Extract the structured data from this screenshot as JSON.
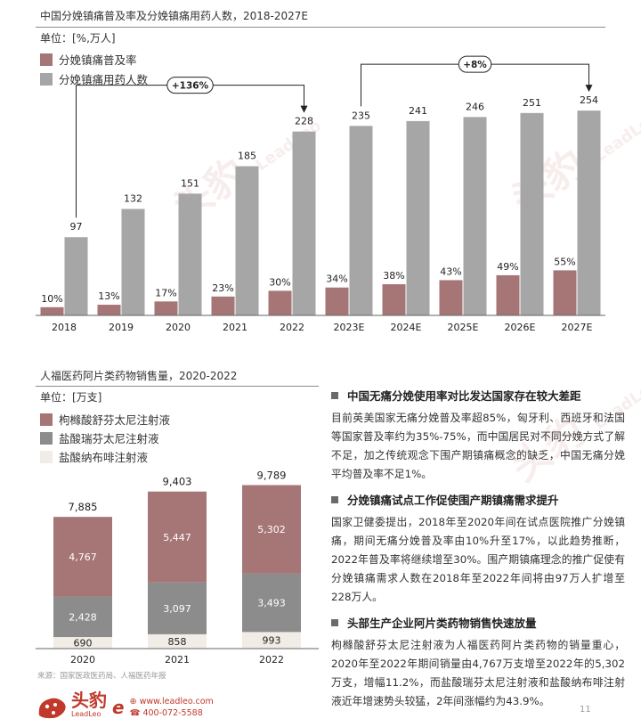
{
  "chart1": {
    "title": "中国分娩镇痛普及率及分娩镇痛用药人数，2018-2027E",
    "unit": "单位：[%,万人]",
    "legend": [
      {
        "label": "分娩镇痛普及率",
        "color": "#a67676"
      },
      {
        "label": "分娩镇痛用药人数",
        "color": "#a6a6a6"
      }
    ],
    "growth_labels": [
      "+136%",
      "+8%"
    ]
  },
  "chart2": {
    "title": "人福医药阿片类药物销售量，2020-2022",
    "unit": "单位：[万支]",
    "legend": [
      {
        "label": "枸橼酸舒芬太尼注射液",
        "color": "#a67676"
      },
      {
        "label": "盐酸瑞芬太尼注射液",
        "color": "#8c8c8c"
      },
      {
        "label": "盐酸纳布啡注射液",
        "color": "#f2ece6"
      }
    ],
    "source": "来源：国家医政医药局、人福医药年报"
  },
  "chart_data": [
    {
      "type": "bar",
      "title": "中国分娩镇痛普及率及分娩镇痛用药人数，2018-2027E",
      "categories": [
        "2018",
        "2019",
        "2020",
        "2021",
        "2022",
        "2023E",
        "2024E",
        "2025E",
        "2026E",
        "2027E"
      ],
      "series": [
        {
          "name": "分娩镇痛普及率",
          "values": [
            10,
            13,
            17,
            23,
            30,
            34,
            38,
            43,
            49,
            55
          ],
          "labels": [
            "10%",
            "13%",
            "17%",
            "23%",
            "30%",
            "34%",
            "38%",
            "43%",
            "49%",
            "55%"
          ],
          "color": "#a67676"
        },
        {
          "name": "分娩镇痛用药人数",
          "values": [
            97,
            132,
            151,
            185,
            228,
            235,
            241,
            246,
            251,
            254
          ],
          "labels": [
            "97",
            "132",
            "151",
            "185",
            "228",
            "235",
            "241",
            "246",
            "251",
            "254"
          ],
          "color": "#a6a6a6"
        }
      ],
      "annotations": [
        {
          "text": "+136%",
          "from": "2018",
          "to": "2022"
        },
        {
          "text": "+8%",
          "from": "2023E",
          "to": "2027E"
        }
      ],
      "legend": "top-left"
    },
    {
      "type": "bar",
      "stacked": true,
      "title": "人福医药阿片类药物销售量，2020-2022",
      "categories": [
        "2020",
        "2021",
        "2022"
      ],
      "series": [
        {
          "name": "盐酸纳布啡注射液",
          "values": [
            690,
            858,
            993
          ],
          "labels": [
            "690",
            "858",
            "993"
          ],
          "color": "#f2ece6"
        },
        {
          "name": "盐酸瑞芬太尼注射液",
          "values": [
            2428,
            3097,
            3493
          ],
          "labels": [
            "2,428",
            "3,097",
            "3,493"
          ],
          "color": "#8c8c8c"
        },
        {
          "name": "枸橼酸舒芬太尼注射液",
          "values": [
            4767,
            5447,
            5302
          ],
          "labels": [
            "4,767",
            "5,447",
            "5,302"
          ],
          "color": "#a67676"
        }
      ],
      "totals": [
        "7,885",
        "9,403",
        "9,789"
      ],
      "total_values": [
        7885,
        9403,
        9789
      ],
      "legend": "top-left"
    }
  ],
  "sections": [
    {
      "heading": "中国无痛分娩使用率对比发达国家存在较大差距",
      "text": "目前英美国家无痛分娩普及率超85%，匈牙利、西班牙和法国等国家普及率约为35%-75%，而中国居民对不同分娩方式了解不足，加之传统观念下围产期镇痛概念的缺乏，中国无痛分娩平均普及率不足1%。"
    },
    {
      "heading": "分娩镇痛试点工作促使围产期镇痛需求提升",
      "text": "国家卫健委提出，2018年至2020年间在试点医院推广分娩镇痛，期间无痛分娩普及率由10%升至17%，以此趋势推断，2022年普及率将继续增至30%。围产期镇痛理念的推广促使有分娩镇痛需求人数在2018年至2022年间将由97万人扩增至228万人。"
    },
    {
      "heading": "头部生产企业阿片类药物销售快速放量",
      "text": "枸橼酸舒芬太尼注射液为人福医药阿片类药物的销量重心，2020年至2022年期间销量由4,767万支增至2022年的5,302万支，增幅11.2%，而盐酸瑞芬太尼注射液和盐酸纳布啡注射液近年增速势头较猛，2年间涨幅约为43.9%。"
    }
  ],
  "footer": {
    "logo_cn": "头豹",
    "logo_en": "LeadLeo",
    "website": "www.leadleo.com",
    "phone": "400-072-5588",
    "page": "11"
  },
  "watermark": {
    "cn": "头豹",
    "en": "LeadLeo"
  }
}
